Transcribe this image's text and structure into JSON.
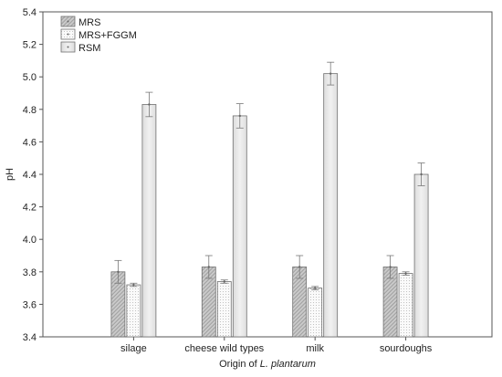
{
  "chart_data": {
    "type": "bar",
    "title": "",
    "xlabel_prefix": "Origin of ",
    "xlabel_italic": "L. plantarum",
    "ylabel": "pH",
    "ylim": [
      3.4,
      5.4
    ],
    "yticks": [
      "3.4",
      "3.6",
      "3.8",
      "4.0",
      "4.2",
      "4.4",
      "4.6",
      "4.8",
      "5.0",
      "5.2",
      "5.4"
    ],
    "grid": false,
    "legend_position": "top-left",
    "categories": [
      "silage",
      "cheese wild types",
      "milk",
      "sourdoughs"
    ],
    "series": [
      {
        "name": "MRS",
        "values": [
          3.8,
          3.83,
          3.83,
          3.83
        ],
        "errors": [
          0.07,
          0.07,
          0.07,
          0.07
        ],
        "fill": "#c8c8c8",
        "pattern": "hatch"
      },
      {
        "name": "MRS+FGGM",
        "values": [
          3.72,
          3.74,
          3.7,
          3.79
        ],
        "errors": [
          0.01,
          0.01,
          0.01,
          0.01
        ],
        "fill": "#f4f4f4",
        "pattern": "dots"
      },
      {
        "name": "RSM",
        "values": [
          4.83,
          4.76,
          5.02,
          4.4
        ],
        "errors": [
          0.075,
          0.075,
          0.07,
          0.07
        ],
        "fill": "#e6e6e6",
        "pattern": "plain"
      }
    ]
  }
}
